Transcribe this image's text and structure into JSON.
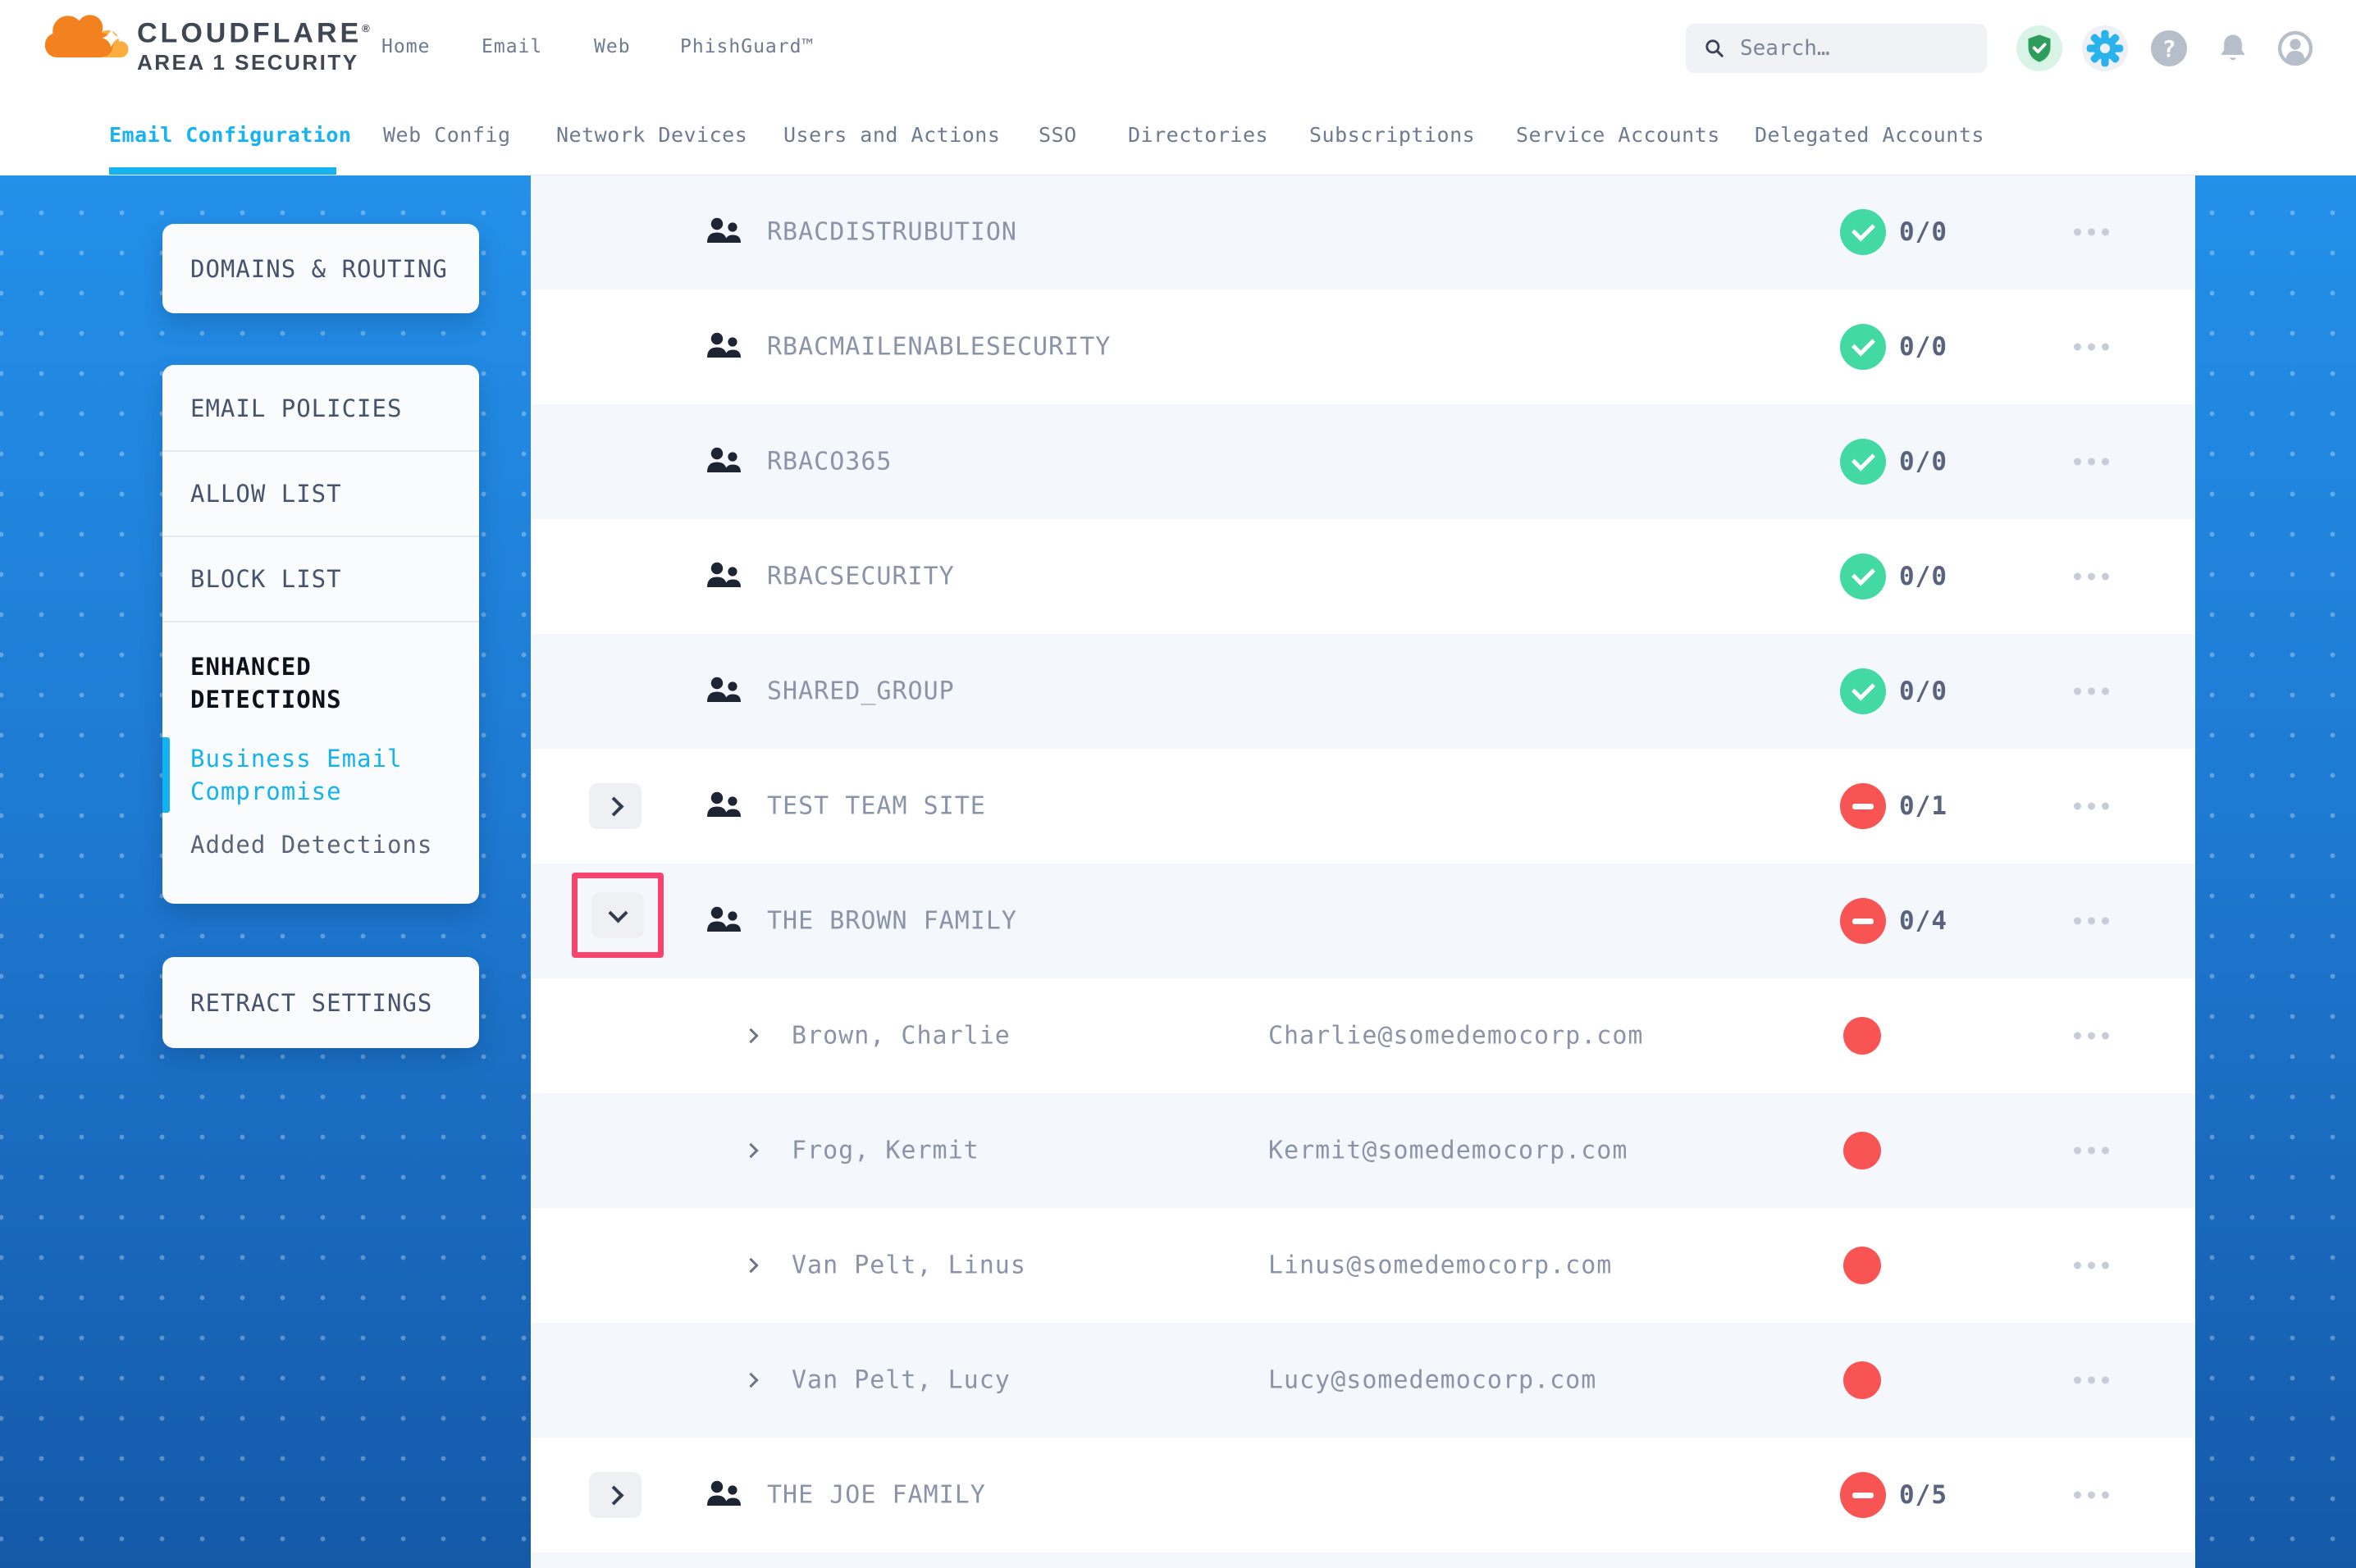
{
  "colors": {
    "accent_cyan": "#17b2f2",
    "badge_green": "#43d9a3",
    "badge_red": "#f95454",
    "highlight_pink": "#f9436f",
    "panel_blue_top": "#2390e9",
    "panel_blue_bottom": "#1459a8",
    "row_alt": "#f4f7fb",
    "logo_orange": "#f48120",
    "logo_amber": "#faae40"
  },
  "header": {
    "brand_line1": "CLOUDFLARE",
    "brand_reg_mark": "®",
    "brand_line2": "AREA 1 SECURITY",
    "nav": [
      {
        "label": "Home"
      },
      {
        "label": "Email"
      },
      {
        "label": "Web"
      },
      {
        "label": "PhishGuard™"
      }
    ],
    "search": {
      "placeholder": "Search…"
    },
    "action_icons": [
      "shield-check",
      "settings-gear",
      "help",
      "notifications-bell",
      "account"
    ]
  },
  "tabs": {
    "items": [
      {
        "label": "Email Configuration",
        "active": true
      },
      {
        "label": "Web Config"
      },
      {
        "label": "Network Devices"
      },
      {
        "label": "Users and Actions"
      },
      {
        "label": "SSO"
      },
      {
        "label": "Directories"
      },
      {
        "label": "Subscriptions"
      },
      {
        "label": "Service Accounts"
      },
      {
        "label": "Delegated Accounts"
      }
    ]
  },
  "sidebar": {
    "domains_card": {
      "label": "DOMAINS & ROUTING"
    },
    "policies_card": {
      "items": [
        {
          "label": "EMAIL POLICIES"
        },
        {
          "label": "ALLOW LIST"
        },
        {
          "label": "BLOCK LIST"
        },
        {
          "label": "ENHANCED DETECTIONS"
        },
        {
          "label": "Business Email Compromise"
        },
        {
          "label": "Added Detections"
        }
      ]
    },
    "retract_card": {
      "label": "RETRACT SETTINGS"
    }
  },
  "table": {
    "rows": [
      {
        "type": "group",
        "name": "RBACDISTRUBUTION",
        "status": "ok",
        "count": "0/0"
      },
      {
        "type": "group",
        "name": "RBACMAILENABLESECURITY",
        "status": "ok",
        "count": "0/0"
      },
      {
        "type": "group",
        "name": "RBACO365",
        "status": "ok",
        "count": "0/0"
      },
      {
        "type": "group",
        "name": "RBACSECURITY",
        "status": "ok",
        "count": "0/0"
      },
      {
        "type": "group",
        "name": "SHARED_GROUP",
        "status": "ok",
        "count": "0/0"
      },
      {
        "type": "group",
        "name": "TEST TEAM SITE",
        "status": "blocked",
        "count": "0/1",
        "expander": "right"
      },
      {
        "type": "group",
        "name": "THE BROWN FAMILY",
        "status": "blocked",
        "count": "0/4",
        "expander": "down",
        "highlighted": true
      },
      {
        "type": "member",
        "name": "Brown, Charlie",
        "email": "Charlie@somedemocorp.com",
        "status": "alert"
      },
      {
        "type": "member",
        "name": "Frog, Kermit",
        "email": "Kermit@somedemocorp.com",
        "status": "alert"
      },
      {
        "type": "member",
        "name": "Van Pelt, Linus",
        "email": "Linus@somedemocorp.com",
        "status": "alert"
      },
      {
        "type": "member",
        "name": "Van Pelt, Lucy",
        "email": "Lucy@somedemocorp.com",
        "status": "alert"
      },
      {
        "type": "group",
        "name": "THE JOE FAMILY",
        "status": "blocked",
        "count": "0/5",
        "expander": "right"
      },
      {
        "type": "spacer"
      }
    ]
  }
}
